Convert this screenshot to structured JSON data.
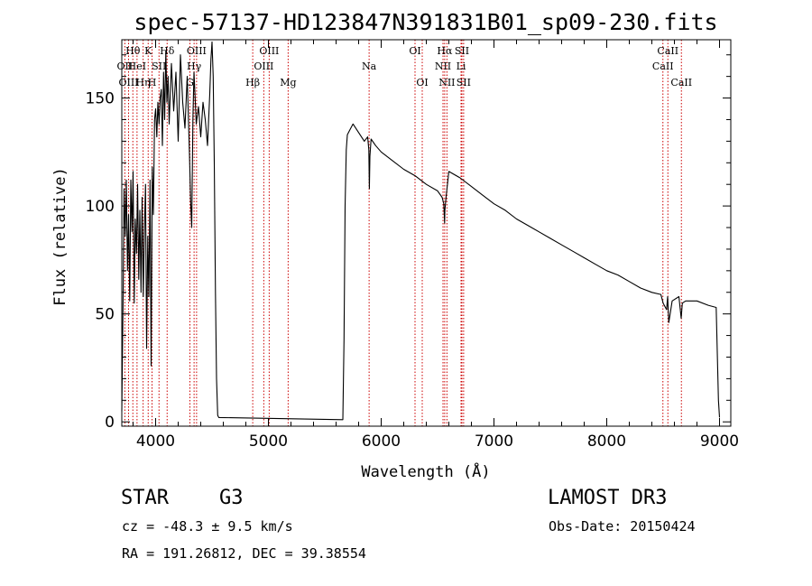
{
  "chart_data": {
    "type": "line",
    "title": "spec-57137-HD123847N391831B01_sp09-230.fits",
    "xlabel": "Wavelength (Å)",
    "ylabel": "Flux (relative)",
    "xlim": [
      3700,
      9100
    ],
    "ylim": [
      -2,
      177
    ],
    "xticks": [
      4000,
      5000,
      6000,
      7000,
      8000,
      9000
    ],
    "xtick_labels": [
      "4000",
      "5000",
      "6000",
      "7000",
      "8000",
      "9000"
    ],
    "yticks": [
      0,
      50,
      100,
      150
    ],
    "ytick_labels": [
      "0",
      "50",
      "100",
      "150"
    ],
    "series": [
      {
        "name": "spectrum",
        "x": [
          3700,
          3712,
          3720,
          3730,
          3740,
          3750,
          3760,
          3770,
          3780,
          3790,
          3800,
          3810,
          3820,
          3830,
          3840,
          3850,
          3860,
          3870,
          3880,
          3890,
          3900,
          3910,
          3920,
          3930,
          3940,
          3950,
          3960,
          3970,
          3980,
          3990,
          4000,
          4010,
          4020,
          4030,
          4040,
          4050,
          4060,
          4070,
          4080,
          4090,
          4100,
          4110,
          4120,
          4140,
          4160,
          4180,
          4200,
          4220,
          4240,
          4260,
          4280,
          4300,
          4310,
          4320,
          4330,
          4340,
          4350,
          4360,
          4380,
          4400,
          4420,
          4440,
          4460,
          4480,
          4490,
          4500,
          4510,
          4520,
          4530,
          4540,
          4550,
          4560,
          5660,
          5670,
          5680,
          5690,
          5700,
          5720,
          5750,
          5800,
          5850,
          5880,
          5890,
          5895,
          5900,
          5910,
          5950,
          6000,
          6100,
          6200,
          6300,
          6400,
          6500,
          6540,
          6555,
          6562,
          6565,
          6575,
          6600,
          6700,
          6800,
          6900,
          7000,
          7100,
          7200,
          7300,
          7400,
          7500,
          7600,
          7700,
          7800,
          7900,
          8000,
          8100,
          8200,
          8300,
          8400,
          8480,
          8500,
          8530,
          8540,
          8550,
          8580,
          8640,
          8660,
          8670,
          8700,
          8800,
          8900,
          8970,
          8990,
          9000
        ],
        "values": [
          5,
          60,
          108,
          86,
          112,
          70,
          96,
          56,
          112,
          88,
          116,
          55,
          94,
          78,
          110,
          66,
          98,
          60,
          104,
          58,
          88,
          110,
          34,
          86,
          58,
          112,
          26,
          118,
          96,
          140,
          145,
          132,
          148,
          138,
          150,
          154,
          128,
          162,
          140,
          172,
          148,
          160,
          138,
          166,
          144,
          162,
          130,
          170,
          148,
          136,
          160,
          124,
          102,
          90,
          140,
          162,
          150,
          138,
          146,
          132,
          148,
          140,
          128,
          152,
          168,
          176,
          160,
          120,
          60,
          20,
          3,
          2,
          1,
          38,
          100,
          126,
          133,
          135,
          138,
          134,
          130,
          132,
          126,
          108,
          123,
          131,
          128,
          125,
          121,
          117,
          114,
          110,
          107,
          104,
          101,
          92,
          98,
          104,
          116,
          113,
          109,
          105,
          101,
          98,
          94,
          91,
          88,
          85,
          82,
          79,
          76,
          73,
          70,
          68,
          65,
          62,
          60,
          59,
          55,
          52,
          58,
          46,
          56,
          58,
          48,
          55,
          56,
          56,
          54,
          53,
          10,
          2
        ]
      }
    ],
    "lines": [
      {
        "label": "OII",
        "wavelength": 3727,
        "row": 2
      },
      {
        "label": "OIII",
        "wavelength": 3760,
        "row": 3
      },
      {
        "label": "Hθ",
        "wavelength": 3798,
        "row": 1
      },
      {
        "label": "HeI",
        "wavelength": 3835,
        "row": 2
      },
      {
        "label": "Hη",
        "wavelength": 3889,
        "row": 3
      },
      {
        "label": "K",
        "wavelength": 3934,
        "row": 1
      },
      {
        "label": "H",
        "wavelength": 3968,
        "row": 3
      },
      {
        "label": "SII",
        "wavelength": 4030,
        "row": 2
      },
      {
        "label": "Hδ",
        "wavelength": 4102,
        "row": 1
      },
      {
        "label": "G",
        "wavelength": 4304,
        "row": 3
      },
      {
        "label": "OIII",
        "wavelength": 4363,
        "row": 1
      },
      {
        "label": "Hγ",
        "wavelength": 4341,
        "row": 2
      },
      {
        "label": "Hβ",
        "wavelength": 4861,
        "row": 3
      },
      {
        "label": "OIII",
        "wavelength": 4959,
        "row": 2
      },
      {
        "label": "OIII",
        "wavelength": 5007,
        "row": 1
      },
      {
        "label": "Mg",
        "wavelength": 5175,
        "row": 3
      },
      {
        "label": "Na",
        "wavelength": 5893,
        "row": 2
      },
      {
        "label": "OI",
        "wavelength": 6300,
        "row": 1
      },
      {
        "label": "OI",
        "wavelength": 6364,
        "row": 3
      },
      {
        "label": "NII",
        "wavelength": 6548,
        "row": 2
      },
      {
        "label": "Hα",
        "wavelength": 6563,
        "row": 1
      },
      {
        "label": "NII",
        "wavelength": 6583,
        "row": 3
      },
      {
        "label": "SII",
        "wavelength": 6716,
        "row": 1
      },
      {
        "label": "Li",
        "wavelength": 6708,
        "row": 2
      },
      {
        "label": "SII",
        "wavelength": 6731,
        "row": 3
      },
      {
        "label": "CaII",
        "wavelength": 8498,
        "row": 2
      },
      {
        "label": "CaII",
        "wavelength": 8542,
        "row": 1
      },
      {
        "label": "CaII",
        "wavelength": 8662,
        "row": 3
      }
    ]
  },
  "info": {
    "object_class": "STAR",
    "subclass": "G3",
    "survey": "LAMOST DR3",
    "redshift": "cz = -48.3 ± 9.5 km/s",
    "obs_date": "Obs-Date: 20150424",
    "coords": "RA = 191.26812, DEC =  39.38554"
  },
  "colors": {
    "line_marker": "#cc0000",
    "spectrum": "#000000",
    "axes": "#000000"
  }
}
